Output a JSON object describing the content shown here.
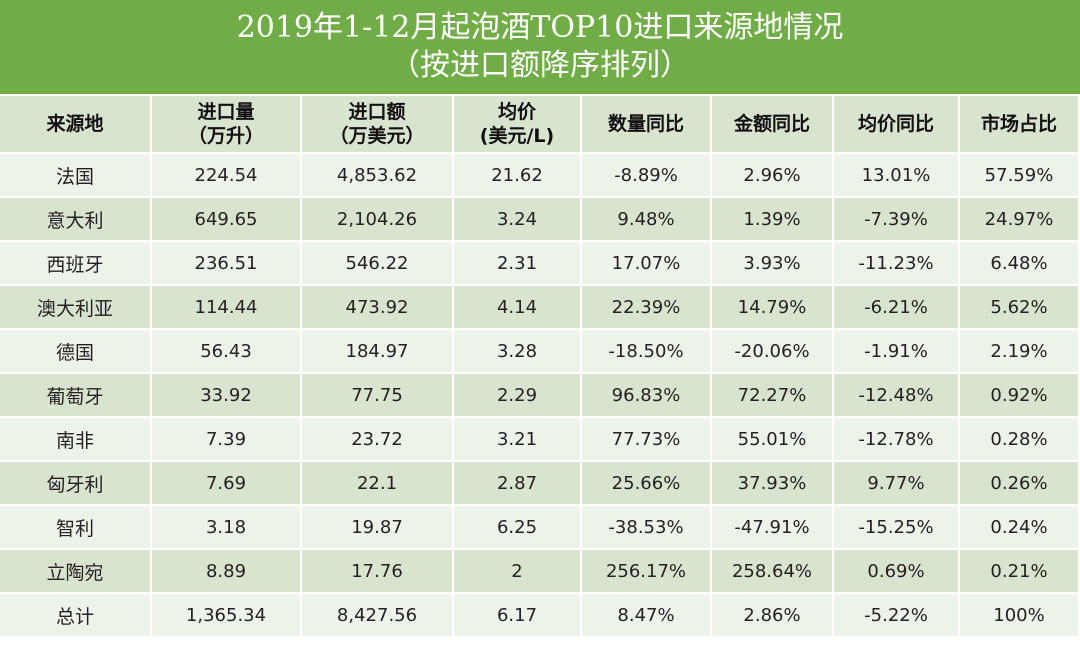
{
  "title": {
    "line1": "2019年1-12月起泡酒TOP10进口来源地情况",
    "line2": "（按进口额降序排列）"
  },
  "headers": [
    {
      "l1": "来源地",
      "l2": ""
    },
    {
      "l1": "进口量",
      "l2": "（万升）"
    },
    {
      "l1": "进口额",
      "l2": "（万美元）"
    },
    {
      "l1": "均价",
      "l2": "(美元/L)"
    },
    {
      "l1": "数量同比",
      "l2": ""
    },
    {
      "l1": "金额同比",
      "l2": ""
    },
    {
      "l1": "均价同比",
      "l2": ""
    },
    {
      "l1": "市场占比",
      "l2": ""
    }
  ],
  "rows": [
    [
      "法国",
      "224.54",
      "4,853.62",
      "21.62",
      "-8.89%",
      "2.96%",
      "13.01%",
      "57.59%"
    ],
    [
      "意大利",
      "649.65",
      "2,104.26",
      "3.24",
      "9.48%",
      "1.39%",
      "-7.39%",
      "24.97%"
    ],
    [
      "西班牙",
      "236.51",
      "546.22",
      "2.31",
      "17.07%",
      "3.93%",
      "-11.23%",
      "6.48%"
    ],
    [
      "澳大利亚",
      "114.44",
      "473.92",
      "4.14",
      "22.39%",
      "14.79%",
      "-6.21%",
      "5.62%"
    ],
    [
      "德国",
      "56.43",
      "184.97",
      "3.28",
      "-18.50%",
      "-20.06%",
      "-1.91%",
      "2.19%"
    ],
    [
      "葡萄牙",
      "33.92",
      "77.75",
      "2.29",
      "96.83%",
      "72.27%",
      "-12.48%",
      "0.92%"
    ],
    [
      "南非",
      "7.39",
      "23.72",
      "3.21",
      "77.73%",
      "55.01%",
      "-12.78%",
      "0.28%"
    ],
    [
      "匈牙利",
      "7.69",
      "22.1",
      "2.87",
      "25.66%",
      "37.93%",
      "9.77%",
      "0.26%"
    ],
    [
      "智利",
      "3.18",
      "19.87",
      "6.25",
      "-38.53%",
      "-47.91%",
      "-15.25%",
      "0.24%"
    ],
    [
      "立陶宛",
      "8.89",
      "17.76",
      "2",
      "256.17%",
      "258.64%",
      "0.69%",
      "0.21%"
    ],
    [
      "总计",
      "1,365.34",
      "8,427.56",
      "6.17",
      "8.47%",
      "2.86%",
      "-5.22%",
      "100%"
    ]
  ],
  "colors": {
    "title_bg": "#70ad47",
    "header_bg": "#d8e4cf",
    "row_light": "#eef3ea",
    "row_dark": "#d8e4cf"
  }
}
